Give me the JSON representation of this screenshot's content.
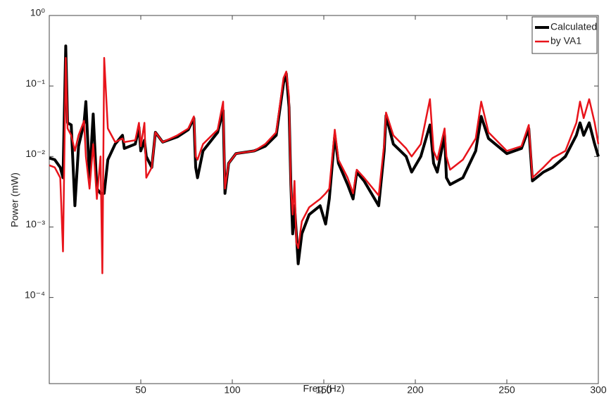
{
  "chart_data": {
    "type": "line",
    "xlabel": "Freq (Hz)",
    "ylabel": "Power (mW)",
    "log_y": true,
    "legend": "upper right",
    "xlim": [
      0,
      300
    ],
    "xticks": [
      50,
      100,
      150,
      200,
      250,
      300
    ],
    "ylim": [
      6e-06,
      1
    ],
    "yticks": [
      {
        "value": 0.0001,
        "label": "10⁻⁴"
      },
      {
        "value": 0.001,
        "label": "10⁻³"
      },
      {
        "value": 0.01,
        "label": "10⁻²"
      },
      {
        "value": 0.1,
        "label": "10⁻¹"
      },
      {
        "value": 1,
        "label": "10⁰"
      }
    ],
    "x": [
      0,
      3,
      6,
      7.5,
      9,
      10,
      12,
      14,
      16,
      19,
      20,
      22,
      24,
      26,
      28,
      29,
      30,
      32,
      36,
      40,
      41,
      47,
      49,
      50,
      52,
      53,
      56,
      58,
      62,
      70,
      76,
      79,
      80,
      81,
      84,
      92,
      95,
      96,
      98,
      102,
      112,
      118,
      124,
      128,
      129.5,
      131,
      132,
      133,
      134,
      135,
      136,
      138,
      142,
      148,
      151,
      153,
      156,
      158,
      163,
      166,
      168,
      172,
      180,
      183,
      184,
      188,
      195,
      198,
      203,
      208,
      210,
      212,
      216,
      217,
      219,
      226,
      233,
      236,
      240,
      250,
      258,
      262,
      264,
      270,
      275,
      282,
      288,
      290,
      292,
      295,
      298,
      300
    ],
    "series": [
      {
        "name": "Calculated",
        "color": "#000000",
        "values": [
          0.0095,
          0.009,
          0.007,
          0.005,
          0.37,
          0.03,
          0.028,
          0.002,
          0.014,
          0.03,
          0.06,
          0.005,
          0.04,
          0.0035,
          0.003,
          0.003,
          0.003,
          0.009,
          0.015,
          0.02,
          0.013,
          0.015,
          0.026,
          0.012,
          0.017,
          0.01,
          0.007,
          0.022,
          0.016,
          0.019,
          0.024,
          0.035,
          0.007,
          0.005,
          0.012,
          0.022,
          0.045,
          0.003,
          0.008,
          0.011,
          0.012,
          0.014,
          0.02,
          0.11,
          0.15,
          0.05,
          0.004,
          0.0008,
          0.002,
          0.0008,
          0.0003,
          0.0008,
          0.0015,
          0.002,
          0.0011,
          0.0025,
          0.02,
          0.008,
          0.004,
          0.0025,
          0.006,
          0.0045,
          0.002,
          0.012,
          0.038,
          0.015,
          0.01,
          0.006,
          0.01,
          0.028,
          0.008,
          0.006,
          0.02,
          0.005,
          0.004,
          0.005,
          0.012,
          0.037,
          0.018,
          0.011,
          0.013,
          0.025,
          0.0045,
          0.006,
          0.007,
          0.01,
          0.02,
          0.03,
          0.02,
          0.03,
          0.015,
          0.01
        ]
      },
      {
        "name": "by VA1",
        "color": "#e8141b",
        "values": [
          0.0075,
          0.007,
          0.005,
          0.00045,
          0.25,
          0.025,
          0.02,
          0.012,
          0.02,
          0.032,
          0.01,
          0.0035,
          0.015,
          0.0025,
          0.01,
          0.00022,
          0.25,
          0.025,
          0.016,
          0.018,
          0.016,
          0.017,
          0.03,
          0.014,
          0.03,
          0.005,
          0.007,
          0.022,
          0.016,
          0.02,
          0.025,
          0.037,
          0.01,
          0.009,
          0.015,
          0.024,
          0.06,
          0.0035,
          0.008,
          0.011,
          0.012,
          0.015,
          0.022,
          0.13,
          0.16,
          0.07,
          0.0035,
          0.0015,
          0.0045,
          0.0006,
          0.0005,
          0.0012,
          0.0019,
          0.0025,
          0.003,
          0.0035,
          0.024,
          0.009,
          0.005,
          0.003,
          0.0065,
          0.005,
          0.0028,
          0.015,
          0.042,
          0.02,
          0.013,
          0.01,
          0.015,
          0.065,
          0.012,
          0.009,
          0.025,
          0.01,
          0.0065,
          0.009,
          0.018,
          0.06,
          0.022,
          0.012,
          0.014,
          0.028,
          0.005,
          0.007,
          0.0095,
          0.012,
          0.03,
          0.06,
          0.035,
          0.065,
          0.03,
          0.015
        ]
      }
    ]
  }
}
